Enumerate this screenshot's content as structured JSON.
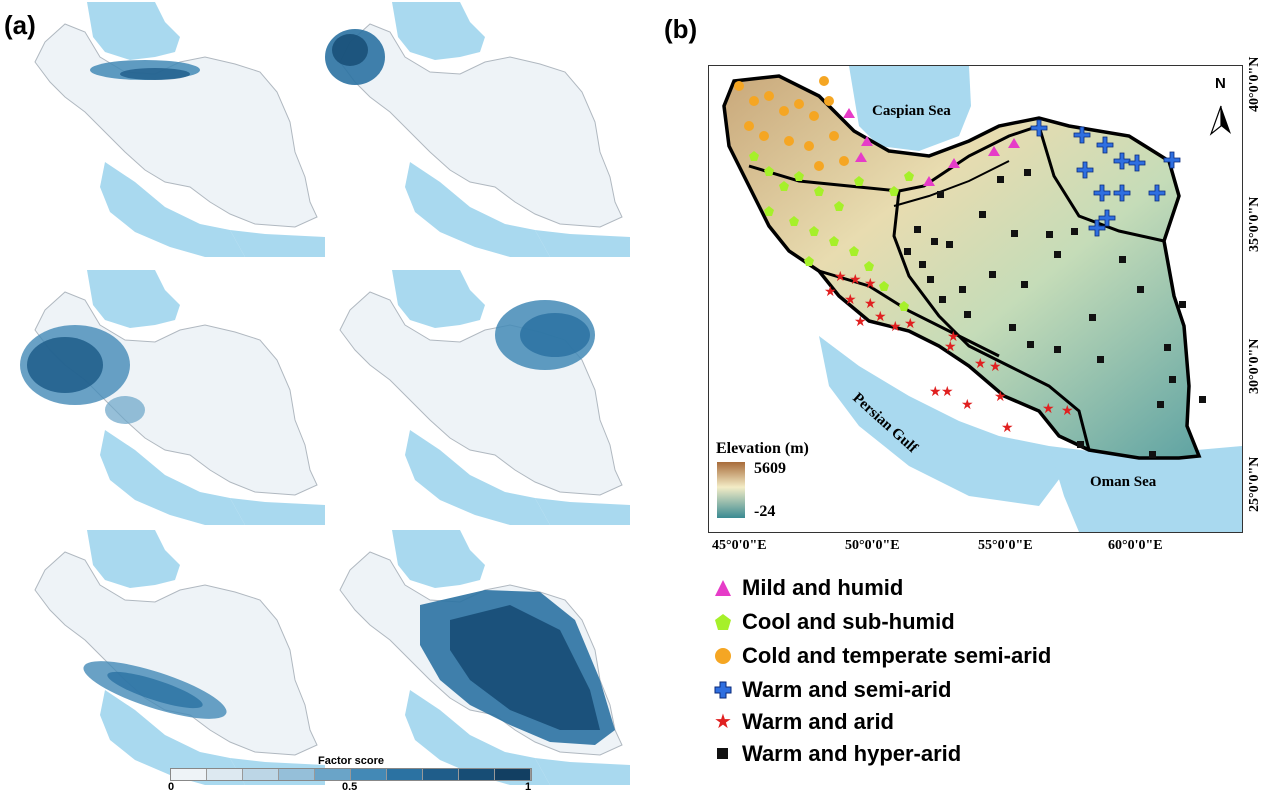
{
  "panel_a": {
    "label": "(a)",
    "colorbar": {
      "title": "Factor score",
      "ticks": [
        "0",
        "0.5",
        "1"
      ],
      "colors": [
        "#eef3f7",
        "#dde9f1",
        "#bcd6e6",
        "#95bfd9",
        "#6aa4c8",
        "#4389b6",
        "#2b72a2",
        "#1f5d8a",
        "#174d75",
        "#123f62"
      ]
    }
  },
  "panel_b": {
    "label": "(b)",
    "elevation_title": "Elevation (m)",
    "elevation_max": "5609",
    "elevation_min": "-24",
    "lon_labels": [
      "45°0'0\"E",
      "50°0'0\"E",
      "55°0'0\"E",
      "60°0'0\"E"
    ],
    "lat_labels": [
      "40°0'0\"N",
      "35°0'0\"N",
      "30°0'0\"N",
      "25°0'0\"N"
    ],
    "sea_labels": {
      "caspian": "Caspian Sea",
      "persian": "Persian Gulf",
      "oman": "Oman Sea"
    },
    "north_label": "N"
  },
  "legend": [
    {
      "label": "Mild and  humid",
      "symbol": "triangle",
      "color": "#e63cc8"
    },
    {
      "label": "Cool and sub-humid",
      "symbol": "pentagon",
      "color": "#a6f02a"
    },
    {
      "label": "Cold and temperate semi-arid",
      "symbol": "circle",
      "color": "#f5a623"
    },
    {
      "label": "Warm and semi-arid",
      "symbol": "cross",
      "color": "#2f6fe0"
    },
    {
      "label": "Warm and arid",
      "symbol": "star",
      "color": "#e02020"
    },
    {
      "label": "Warm and hyper-arid",
      "symbol": "square",
      "color": "#111111"
    }
  ]
}
